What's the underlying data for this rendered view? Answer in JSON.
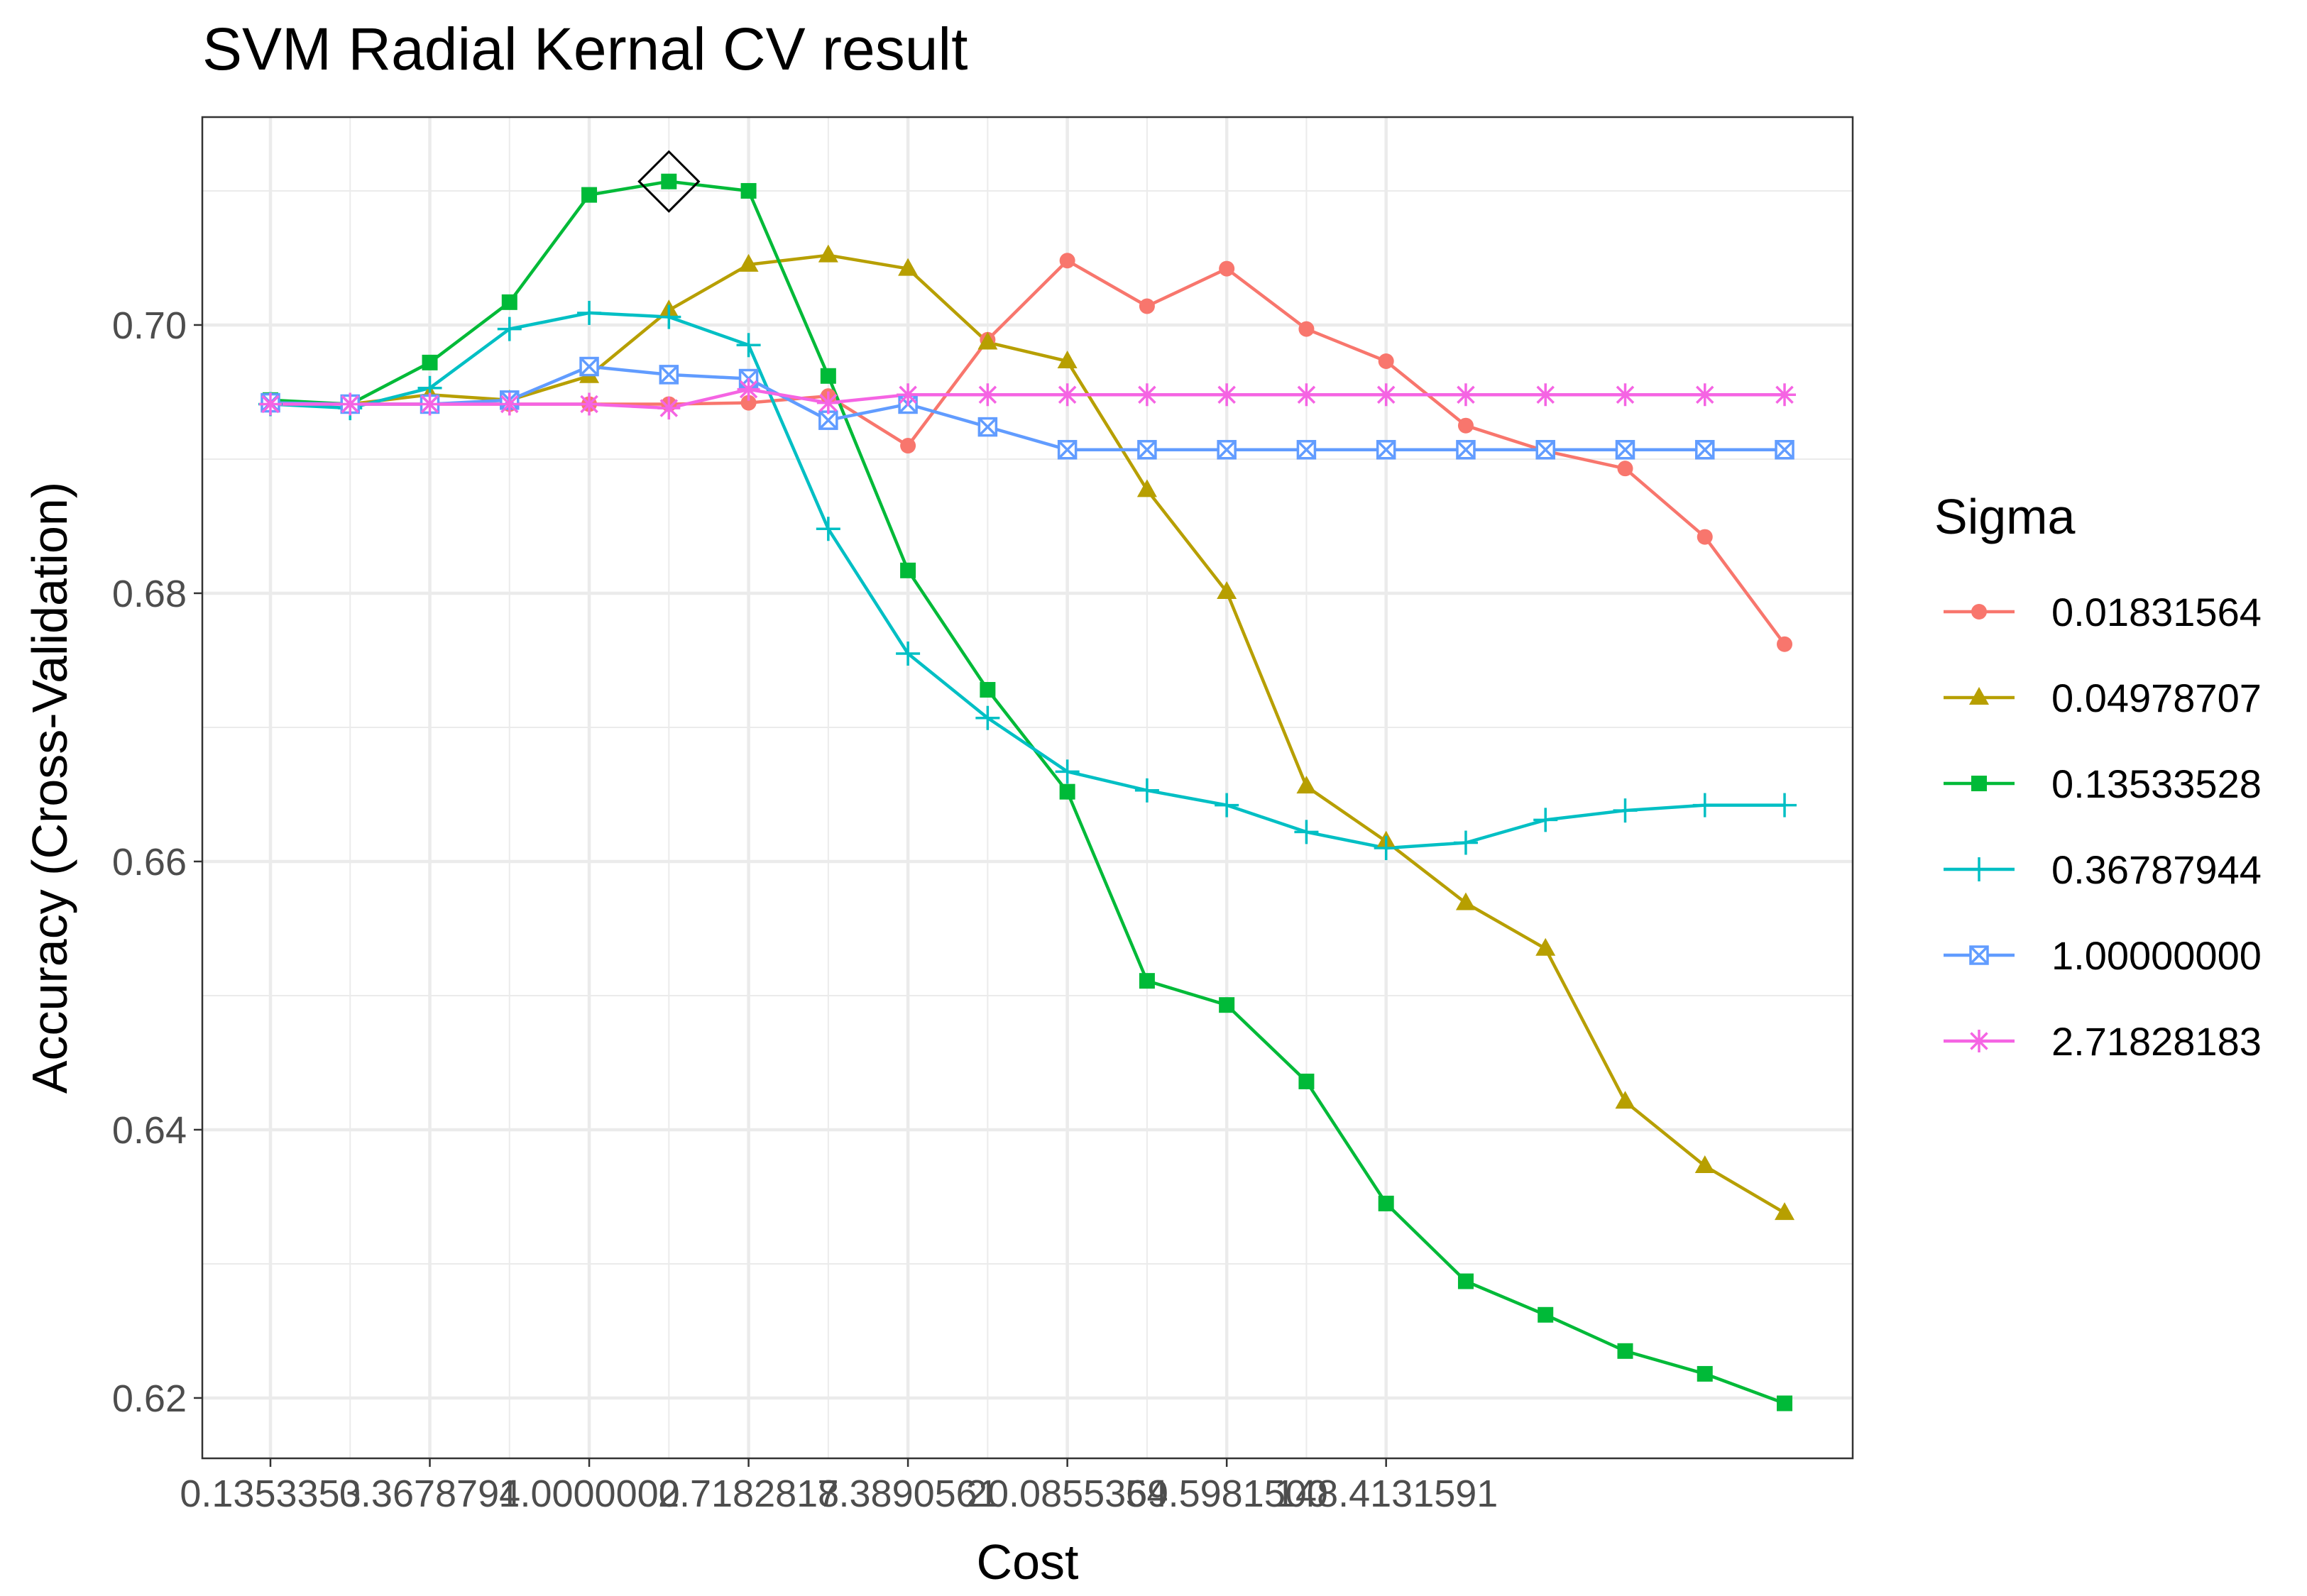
{
  "chart_data": {
    "type": "line",
    "title": "SVM Radial Kernal CV result",
    "xlabel": "Cost",
    "ylabel": "Accuracy (Cross-Validation)",
    "x_scale": "log",
    "x_ticks": [
      {
        "value": 0.1353353,
        "label": "0.1353353"
      },
      {
        "value": 0.3678794,
        "label": "0.3678794"
      },
      {
        "value": 1.0,
        "label": "1.0000000"
      },
      {
        "value": 2.7182818,
        "label": "2.7182818"
      },
      {
        "value": 7.3890561,
        "label": "7.3890561"
      },
      {
        "value": 20.0855369,
        "label": "20.0855369"
      },
      {
        "value": 54.59815,
        "label": "54.5981500"
      },
      {
        "value": 148.4131591,
        "label": "148.4131591"
      }
    ],
    "y_ticks": [
      {
        "value": 0.62,
        "label": "0.62"
      },
      {
        "value": 0.64,
        "label": "0.64"
      },
      {
        "value": 0.66,
        "label": "0.66"
      },
      {
        "value": 0.68,
        "label": "0.68"
      },
      {
        "value": 0.7,
        "label": "0.70"
      }
    ],
    "ylim": [
      0.6155,
      0.7155
    ],
    "x": [
      0.1353353,
      0.2231302,
      0.3678794,
      0.6065307,
      1.0,
      1.6487213,
      2.7182818,
      4.4816891,
      7.3890561,
      12.182494,
      20.0855369,
      33.115452,
      54.59815,
      90.0171313,
      148.4131591,
      244.6919323,
      403.4287935,
      665.141633,
      1096.6331584,
      1808.0424144
    ],
    "legend_title": "Sigma",
    "legend_position": "right",
    "grid": true,
    "series": [
      {
        "name": "0.01831564",
        "color": "#F8766D",
        "marker": "circle",
        "values": [
          0.6942,
          0.6941,
          0.6941,
          0.6941,
          0.6941,
          0.6941,
          0.6942,
          0.6947,
          0.691,
          0.6989,
          0.7048,
          0.7014,
          0.7042,
          0.6997,
          0.6973,
          0.6925,
          0.6906,
          0.6893,
          0.6842,
          0.6762
        ]
      },
      {
        "name": "0.04978707",
        "color": "#B79F00",
        "marker": "triangle",
        "values": [
          0.6942,
          0.6941,
          0.6948,
          0.6944,
          0.6962,
          0.7011,
          0.7045,
          0.7052,
          0.7042,
          0.6987,
          0.6973,
          0.6877,
          0.6801,
          0.6656,
          0.6615,
          0.6569,
          0.6535,
          0.6421,
          0.6373,
          0.6338
        ]
      },
      {
        "name": "0.13533528",
        "color": "#00BA38",
        "marker": "square",
        "values": [
          0.6944,
          0.6941,
          0.6972,
          0.7017,
          0.7097,
          0.7107,
          0.71,
          0.6962,
          0.6817,
          0.6728,
          0.6652,
          0.6511,
          0.6493,
          0.6436,
          0.6345,
          0.6287,
          0.6262,
          0.6235,
          0.6218,
          0.6196
        ]
      },
      {
        "name": "0.36787944",
        "color": "#00BFC4",
        "marker": "plus",
        "values": [
          0.6941,
          0.6938,
          0.6953,
          0.6997,
          0.7009,
          0.7006,
          0.6985,
          0.6848,
          0.6755,
          0.6707,
          0.6667,
          0.6653,
          0.6642,
          0.6622,
          0.661,
          0.6614,
          0.6631,
          0.6638,
          0.6642,
          0.6642
        ]
      },
      {
        "name": "1.00000000",
        "color": "#619CFF",
        "marker": "square-x",
        "values": [
          0.6942,
          0.6941,
          0.6941,
          0.6944,
          0.6969,
          0.6963,
          0.696,
          0.6929,
          0.6941,
          0.6924,
          0.6907,
          0.6907,
          0.6907,
          0.6907,
          0.6907,
          0.6907,
          0.6907,
          0.6907,
          0.6907,
          0.6907
        ]
      },
      {
        "name": "2.71828183",
        "color": "#F564E3",
        "marker": "asterisk",
        "values": [
          0.6941,
          0.6941,
          0.6941,
          0.6941,
          0.6941,
          0.6938,
          0.6952,
          0.6942,
          0.6948,
          0.6948,
          0.6948,
          0.6948,
          0.6948,
          0.6948,
          0.6948,
          0.6948,
          0.6948,
          0.6948,
          0.6948,
          0.6948
        ]
      }
    ],
    "highlight": {
      "series": "0.13533528",
      "x": 1.6487213,
      "y": 0.7107,
      "marker": "diamond"
    }
  }
}
